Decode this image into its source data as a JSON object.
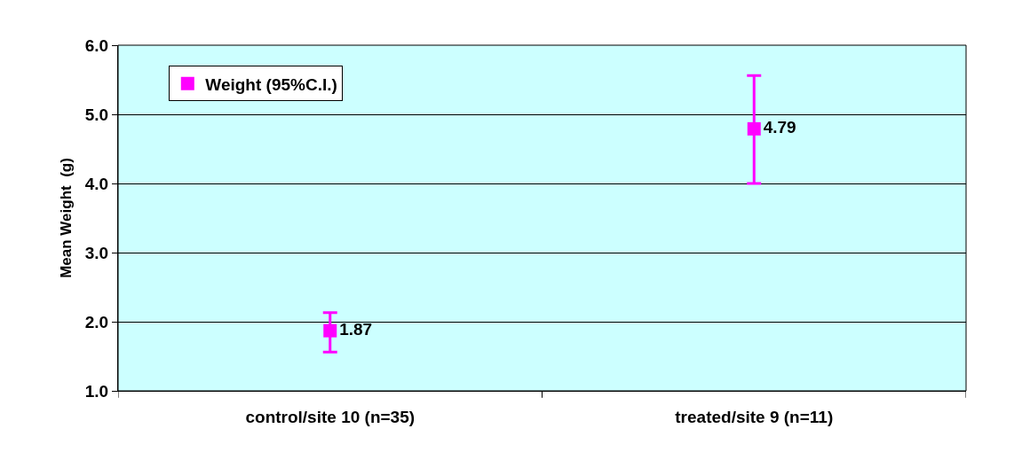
{
  "chart_data": {
    "type": "scatter",
    "ylabel": "Mean Weight  (g)",
    "categories": [
      "control/site 10 (n=35)",
      "treated/site 9 (n=11)"
    ],
    "series": [
      {
        "name": "Weight (95%C.I.)",
        "color": "#ff00ff",
        "values": [
          1.87,
          4.79
        ],
        "errors": [
          [
            1.56,
            2.13
          ],
          [
            4.0,
            5.56
          ]
        ],
        "value_labels": [
          "1.87",
          "4.79"
        ]
      }
    ],
    "ylim": [
      1.0,
      6.0
    ],
    "yticks": [
      {
        "value": 1,
        "label": "1.0"
      },
      {
        "value": 2,
        "label": "2.0"
      },
      {
        "value": 3,
        "label": "3.0"
      },
      {
        "value": 4,
        "label": "4.0"
      },
      {
        "value": 5,
        "label": "5.0"
      },
      {
        "value": 6,
        "label": "6.0"
      }
    ],
    "grid": "y",
    "legend": "top left",
    "marker": "square",
    "line_style": "none"
  }
}
